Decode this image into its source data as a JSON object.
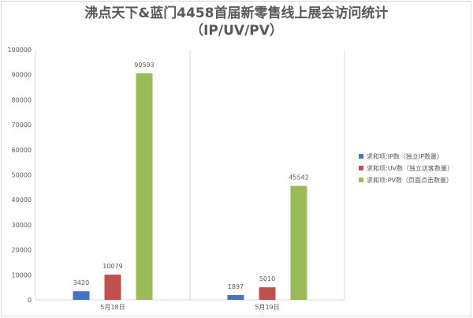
{
  "chart_data": {
    "type": "bar",
    "title": "沸点天下&蓝门4458首届新零售线上展会访问统计",
    "subtitle": "（IP/UV/PV）",
    "categories": [
      "5月18日",
      "5月19日"
    ],
    "series": [
      {
        "name": "求和项:IP数（独立IP数量）",
        "color": "#4472c4",
        "values": [
          3420,
          1897
        ]
      },
      {
        "name": "求和项:UV数（独立访客数量）",
        "color": "#c0504d",
        "values": [
          10079,
          5010
        ]
      },
      {
        "name": "求和项:PV数（页面点击数量）",
        "color": "#9bbb59",
        "values": [
          90593,
          45542
        ]
      }
    ],
    "yticks": [
      0,
      10000,
      20000,
      30000,
      40000,
      50000,
      60000,
      70000,
      80000,
      90000,
      100000
    ],
    "ylim": [
      0,
      100000
    ],
    "xlabel": "",
    "ylabel": "",
    "grid": false,
    "legend": "right"
  }
}
